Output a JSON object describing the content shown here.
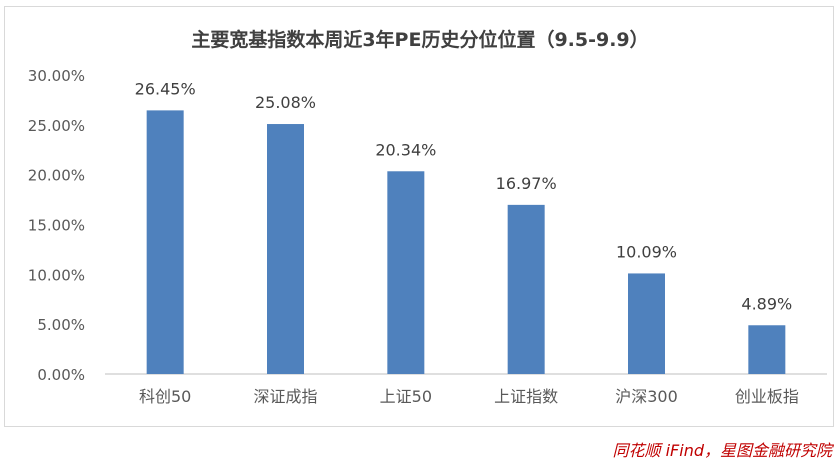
{
  "source_note": "同花顺 iFind，星图金融研究院",
  "chart_data": {
    "type": "bar",
    "title": "主要宽基指数本周近3年PE历史分位位置（9.5-9.9）",
    "categories": [
      "科创50",
      "深证成指",
      "上证50",
      "上证指数",
      "沪深300",
      "创业板指"
    ],
    "values": [
      26.45,
      25.08,
      20.34,
      16.97,
      10.09,
      4.89
    ],
    "value_labels": [
      "26.45%",
      "25.08%",
      "20.34%",
      "16.97%",
      "10.09%",
      "4.89%"
    ],
    "y_ticks": [
      "0.00%",
      "5.00%",
      "10.00%",
      "15.00%",
      "20.00%",
      "25.00%",
      "30.00%"
    ],
    "ylim": [
      0,
      30
    ],
    "grid": false,
    "legend": "none",
    "bar_color": "#4f81bd"
  }
}
